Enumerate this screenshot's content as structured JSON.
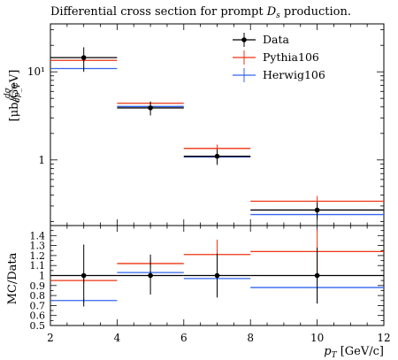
{
  "title": "Differential cross section for prompt D_s production.",
  "title_plain": "Differential cross section for prompt ",
  "title_italic": "D",
  "title_sub": "s",
  "title_tail": " production.",
  "chart_data": [
    {
      "type": "line",
      "panel": "main",
      "ylabel_numerator": "dσ",
      "ylabel_denominator": "dp_T",
      "ylabel_unit": "[μb/GeV]",
      "yscale": "log",
      "ylim": [
        0.18,
        35
      ],
      "xlim": [
        2,
        12
      ],
      "yticks": [
        {
          "value": 10,
          "label": "10¹"
        },
        {
          "value": 1,
          "label": "1"
        }
      ],
      "x_bins": [
        [
          2,
          4
        ],
        [
          4,
          6
        ],
        [
          6,
          8
        ],
        [
          8,
          12
        ]
      ],
      "series": [
        {
          "name": "Data",
          "color": "#000000",
          "style": "points",
          "values": [
            14.5,
            3.9,
            1.1,
            0.27
          ],
          "err_low": [
            4.5,
            0.7,
            0.22,
            0.06
          ],
          "err_high": [
            4.5,
            0.7,
            0.22,
            0.06
          ]
        },
        {
          "name": "Pythia106",
          "color": "#ee3311",
          "style": "hist",
          "values": [
            13.5,
            4.4,
            1.35,
            0.34
          ],
          "err_low": [
            0.5,
            0.15,
            0.14,
            0.05
          ],
          "err_high": [
            0.5,
            0.15,
            0.14,
            0.05
          ]
        },
        {
          "name": "Herwig106",
          "color": "#3366ee",
          "style": "hist",
          "values": [
            10.9,
            4.05,
            1.08,
            0.24
          ],
          "err_low": [
            0.25,
            0.1,
            0.04,
            0.02
          ],
          "err_high": [
            0.25,
            0.1,
            0.04,
            0.02
          ]
        }
      ],
      "legend_placement": "top-right"
    },
    {
      "type": "line",
      "panel": "ratio",
      "ylabel": "MC/Data",
      "xlabel": "p_T [GeV/c]",
      "xlabel_italic": "p",
      "xlabel_sub": "T",
      "xlabel_unit": " [GeV/c]",
      "ylim": [
        0.5,
        1.5
      ],
      "xlim": [
        2,
        12
      ],
      "xticks": [
        2,
        4,
        6,
        8,
        10,
        12
      ],
      "yticks": [
        "0.5",
        "0.6",
        "0.7",
        "0.8",
        "0.9",
        "1",
        "1.1",
        "1.2",
        "1.3",
        "1.4"
      ],
      "ytick_values": [
        0.5,
        0.6,
        0.7,
        0.8,
        0.9,
        1.0,
        1.1,
        1.2,
        1.3,
        1.4
      ],
      "x_bins": [
        [
          2,
          4
        ],
        [
          4,
          6
        ],
        [
          6,
          8
        ],
        [
          8,
          12
        ]
      ],
      "series": [
        {
          "name": "Data",
          "color": "#000000",
          "style": "points",
          "values": [
            1.0,
            1.0,
            1.0,
            1.0
          ],
          "err_low": [
            0.31,
            0.19,
            0.22,
            0.28
          ],
          "err_high": [
            0.31,
            0.21,
            0.22,
            0.28
          ]
        },
        {
          "name": "Pythia106",
          "color": "#ee3311",
          "style": "hist",
          "values": [
            0.95,
            1.12,
            1.21,
            1.24
          ],
          "err_low": [
            0.03,
            0.04,
            0.15,
            0.22
          ],
          "err_high": [
            0.03,
            0.04,
            0.15,
            0.22
          ]
        },
        {
          "name": "Herwig106",
          "color": "#3366ee",
          "style": "hist",
          "values": [
            0.75,
            1.03,
            0.97,
            0.88
          ],
          "err_low": [
            0.02,
            0.02,
            0.05,
            0.16
          ],
          "err_high": [
            0.02,
            0.02,
            0.05,
            0.16
          ]
        }
      ]
    }
  ]
}
